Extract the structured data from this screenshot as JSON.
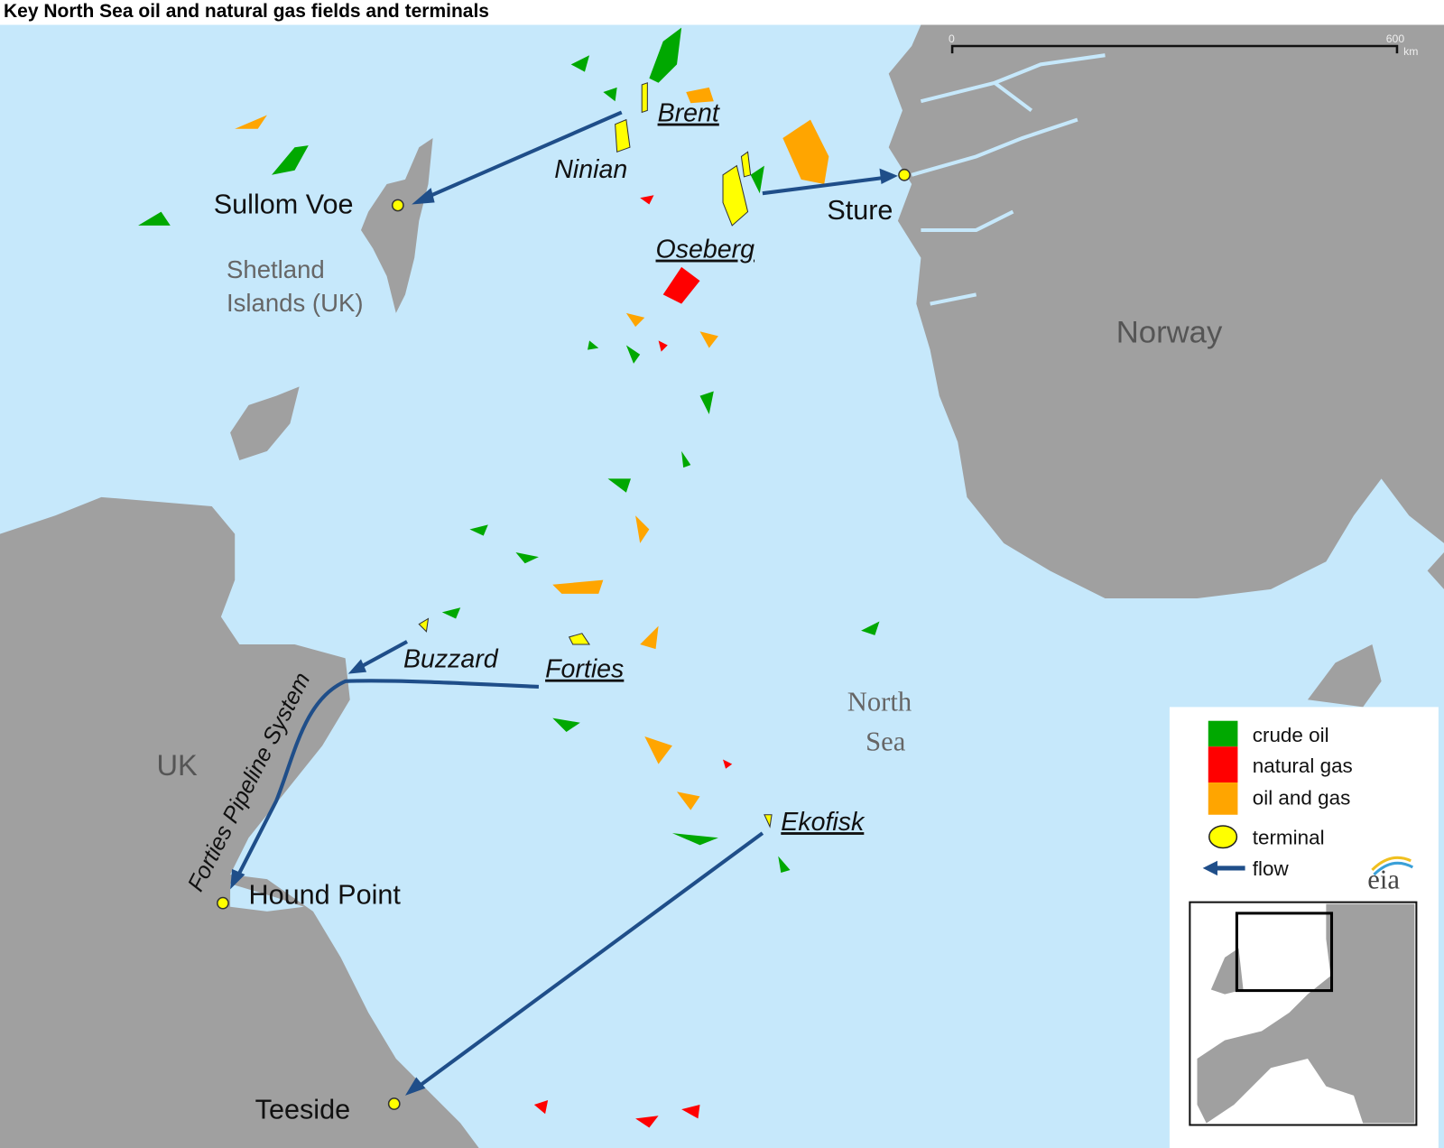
{
  "title": "Key North Sea oil and natural gas fields and terminals",
  "scale_bar": {
    "start": "0",
    "end": "600",
    "unit": "km"
  },
  "regions": {
    "norway": "Norway",
    "uk": "UK",
    "shetland_line1": "Shetland",
    "shetland_line2": "Islands (UK)",
    "sea_line1": "North",
    "sea_line2": "Sea"
  },
  "fields": [
    "Brent",
    "Ninian",
    "Oseberg",
    "Buzzard",
    "Forties",
    "Ekofisk"
  ],
  "terminals": [
    "Sullom Voe",
    "Sture",
    "Hound Point",
    "Teeside"
  ],
  "pipeline": "Forties Pipeline System",
  "legend": {
    "items": [
      {
        "label": "crude oil",
        "color": "#00a800"
      },
      {
        "label": "natural gas",
        "color": "#ff0000"
      },
      {
        "label": "oil and gas",
        "color": "#ffa500"
      }
    ],
    "terminal": "terminal",
    "terminal_color": "#ffff00",
    "flow": "flow",
    "flow_color": "#1f4e89",
    "logo": "eia"
  },
  "colors": {
    "sea": "#c6e8fb",
    "land": "#a0a0a0"
  }
}
